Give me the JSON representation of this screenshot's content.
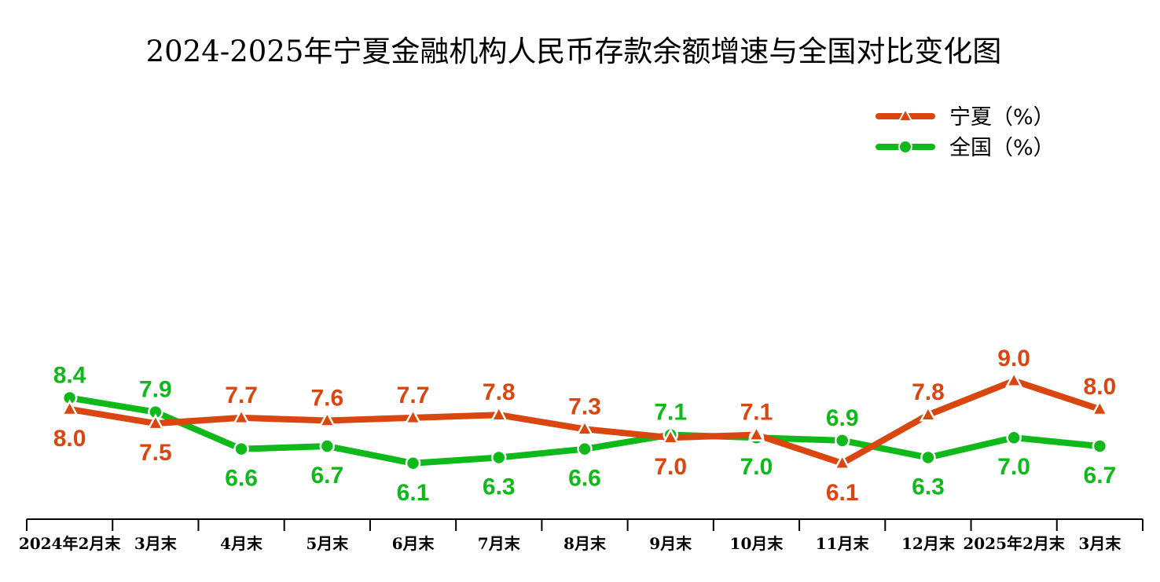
{
  "chart_data": {
    "type": "line",
    "title": "2024-2025年宁夏金融机构人民币存款余额增速与全国对比变化图",
    "categories": [
      "2024年2月末",
      "3月末",
      "4月末",
      "5月末",
      "6月末",
      "7月末",
      "8月末",
      "9月末",
      "10月末",
      "11月末",
      "12月末",
      "2025年2月末",
      "3月末"
    ],
    "series": [
      {
        "name": "宁夏（%）",
        "color": "#d9460f",
        "marker": "triangle",
        "values": [
          8.0,
          7.5,
          7.7,
          7.6,
          7.7,
          7.8,
          7.3,
          7.0,
          7.1,
          6.1,
          7.8,
          9.0,
          8.0
        ],
        "labels": [
          "8.0",
          "7.5",
          "7.7",
          "7.6",
          "7.7",
          "7.8",
          "7.3",
          "7.0",
          "7.1",
          "6.1",
          "7.8",
          "9.0",
          "8.0"
        ]
      },
      {
        "name": "全国（%）",
        "color": "#10b91a",
        "marker": "circle",
        "values": [
          8.4,
          7.9,
          6.6,
          6.7,
          6.1,
          6.3,
          6.6,
          7.1,
          7.0,
          6.9,
          6.3,
          7.0,
          6.7
        ],
        "labels": [
          "8.4",
          "7.9",
          "6.6",
          "6.7",
          "6.1",
          "6.3",
          "6.6",
          "7.1",
          "7.0",
          "6.9",
          "6.3",
          "7.0",
          "6.7"
        ]
      }
    ],
    "xlabel": "",
    "ylabel": "",
    "grid": false,
    "legend_position": "top-right",
    "y_axis_visible": false
  }
}
